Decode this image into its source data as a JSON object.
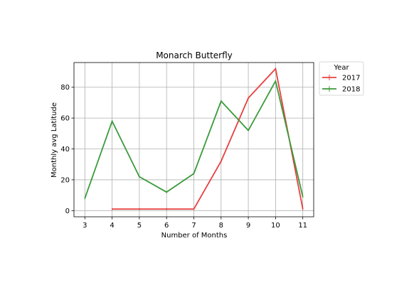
{
  "chart_data": {
    "type": "line",
    "title": "Monarch Butterfly",
    "xlabel": "Number of Months",
    "ylabel": "Monthly avg Latitude",
    "xlim": [
      2.6,
      11.4
    ],
    "ylim": [
      -4,
      96
    ],
    "xticks": [
      3,
      4,
      5,
      6,
      7,
      8,
      9,
      10,
      11
    ],
    "yticks": [
      0,
      20,
      40,
      60,
      80
    ],
    "grid": true,
    "legend": {
      "title": "Year",
      "placement": "outside-top-right"
    },
    "series": [
      {
        "name": "2017",
        "color": "#e8403f",
        "x": [
          4,
          5,
          6,
          7,
          8,
          9,
          10,
          11
        ],
        "y": [
          1,
          1,
          1,
          1,
          32,
          73,
          92,
          1
        ]
      },
      {
        "name": "2018",
        "color": "#3a9a3a",
        "x": [
          3,
          4,
          5,
          6,
          7,
          8,
          9,
          10,
          11
        ],
        "y": [
          8,
          58,
          22,
          12,
          24,
          71,
          52,
          84,
          9
        ]
      }
    ]
  }
}
